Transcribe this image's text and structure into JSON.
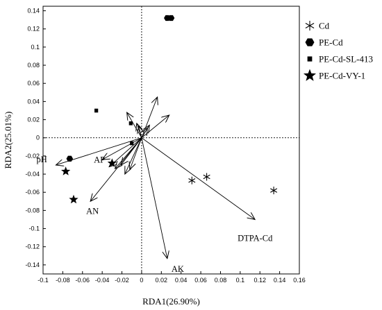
{
  "chart_data": {
    "type": "scatter",
    "subtype": "rda-biplot",
    "xlabel": "RDA1(26.90%)",
    "ylabel": "RDA2(25.01%)",
    "xlim": [
      -0.1,
      0.16
    ],
    "ylim": [
      -0.15,
      0.145
    ],
    "xticks": [
      -0.1,
      -0.08,
      -0.06,
      -0.04,
      -0.02,
      0,
      0.02,
      0.04,
      0.06,
      0.08,
      0.1,
      0.12,
      0.14,
      0.16
    ],
    "xtick_labels": [
      "-0.1",
      "-0.08",
      "-0.06",
      "-0.04",
      "-0.02",
      "0",
      "0.02",
      "0.04",
      "0.06",
      "0.08",
      "0.1",
      "0.12",
      "0.14",
      "0.16"
    ],
    "yticks": [
      0.14,
      0.12,
      0.1,
      0.08,
      0.06,
      0.04,
      0.02,
      0,
      -0.02,
      -0.04,
      -0.06,
      -0.08,
      -0.1,
      -0.12,
      -0.14
    ],
    "ytick_labels": [
      "0.14",
      "0.12",
      "0.1",
      "0.08",
      "0.06",
      "0.04",
      "0.02",
      "0",
      "-0.02",
      "-0.04",
      "-0.06",
      "-0.08",
      "-0.1",
      "-0.12",
      "-0.14"
    ],
    "grid": false,
    "zero_lines": "dotted",
    "legend_position": "right",
    "series": [
      {
        "name": "Cd",
        "marker": "asterisk",
        "points": [
          [
            0.051,
            -0.047
          ],
          [
            0.066,
            -0.043
          ],
          [
            0.134,
            -0.058
          ]
        ]
      },
      {
        "name": "PE-Cd",
        "marker": "hexagon",
        "points": [
          [
            0.026,
            0.132
          ],
          [
            0.03,
            0.132
          ],
          [
            -0.073,
            -0.023
          ]
        ]
      },
      {
        "name": "PE-Cd-SL-413",
        "marker": "square",
        "points": [
          [
            -0.046,
            0.03
          ],
          [
            -0.011,
            0.016
          ],
          [
            -0.01,
            -0.006
          ]
        ]
      },
      {
        "name": "PE-Cd-VY-1",
        "marker": "star",
        "points": [
          [
            -0.077,
            -0.037
          ],
          [
            -0.069,
            -0.068
          ],
          [
            -0.03,
            -0.028
          ]
        ]
      }
    ],
    "vectors": [
      {
        "label": "pH",
        "x": -0.087,
        "y": -0.03
      },
      {
        "label": "AP",
        "x": -0.033,
        "y": -0.032
      },
      {
        "label": "AN",
        "x": -0.052,
        "y": -0.07
      },
      {
        "label": "DTPA-Cd",
        "x": 0.115,
        "y": -0.09
      },
      {
        "label": "AK",
        "x": 0.026,
        "y": -0.133
      },
      {
        "label": "",
        "x": 0.016,
        "y": 0.045
      },
      {
        "label": "",
        "x": 0.028,
        "y": 0.025
      },
      {
        "label": "",
        "x": -0.015,
        "y": 0.028
      },
      {
        "label": "",
        "x": -0.005,
        "y": 0.016
      },
      {
        "label": "",
        "x": 0.008,
        "y": 0.014
      },
      {
        "label": "",
        "x": -0.003,
        "y": 0.013
      },
      {
        "label": "",
        "x": 0.006,
        "y": 0.011
      },
      {
        "label": "",
        "x": -0.027,
        "y": -0.034
      },
      {
        "label": "",
        "x": -0.017,
        "y": -0.04
      },
      {
        "label": "",
        "x": -0.021,
        "y": -0.03
      },
      {
        "label": "",
        "x": -0.012,
        "y": -0.035
      },
      {
        "label": "",
        "x": -0.04,
        "y": -0.024
      }
    ]
  }
}
